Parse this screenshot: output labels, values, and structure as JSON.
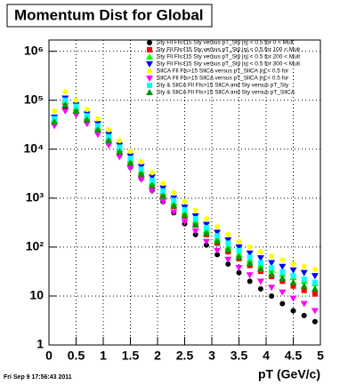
{
  "chart_data": {
    "type": "scatter",
    "title": "Momentum Dist for Global",
    "x_label": "pT (GeV/c)",
    "footer": "Fri Sep  9 17:56:43 2011",
    "log_y": true,
    "grid": true,
    "xlim": [
      0,
      5
    ],
    "xticks": [
      0,
      0.5,
      1,
      1.5,
      2,
      2.5,
      3,
      3.5,
      4,
      4.5,
      5
    ],
    "ylim": [
      1,
      1700000
    ],
    "yticks": [
      1,
      10,
      {
        "value": 100,
        "label": "10²"
      },
      {
        "value": 1000,
        "label": "10³"
      },
      {
        "value": 10000,
        "label": "10⁴"
      },
      {
        "value": 100000,
        "label": "10⁵"
      },
      {
        "value": 1000000,
        "label": "10⁶"
      }
    ],
    "x": [
      0.1,
      0.3,
      0.5,
      0.7,
      0.9,
      1.1,
      1.3,
      1.5,
      1.7,
      1.9,
      2.1,
      2.3,
      2.5,
      2.7,
      2.9,
      3.1,
      3.3,
      3.5,
      3.7,
      3.9,
      4.1,
      4.3,
      4.5,
      4.7,
      4.9
    ],
    "series": [
      {
        "name": "Sty Fll Fls>15 Sty versus pT_Sty |η| < 0.5 for 0 < Mult",
        "color": "#000000",
        "marker": "circle",
        "values": [
          35000,
          70000,
          55000,
          36000,
          22000,
          13000,
          7500,
          4300,
          2500,
          1450,
          850,
          500,
          300,
          180,
          110,
          70,
          45,
          30,
          20,
          14,
          10,
          7,
          5,
          4,
          3
        ]
      },
      {
        "name": "Sty Fll Fls>15 Sty versus pT_Sty |η| < 0.5 for 100 < Mult",
        "color": "#ff0000",
        "marker": "square",
        "values": [
          38000,
          90000,
          65000,
          42000,
          26000,
          15000,
          9000,
          5300,
          3100,
          1800,
          1100,
          680,
          430,
          280,
          180,
          120,
          80,
          58,
          42,
          32,
          25,
          20,
          16,
          13,
          11
        ]
      },
      {
        "name": "Sty Fll Fls>15 Sty versus pT_Sty |η| < 0.5 for 200 < Mult",
        "color": "#00ff00",
        "marker": "up",
        "values": [
          40000,
          95000,
          70000,
          45000,
          28000,
          17000,
          10000,
          6000,
          3600,
          2100,
          1300,
          800,
          520,
          340,
          220,
          150,
          100,
          72,
          55,
          42,
          34,
          28,
          24,
          20,
          18
        ]
      },
      {
        "name": "Sty Fll Fls>15 Sty versus pT_Sty |η| < 0.5 for 300 < Mult",
        "color": "#0000ff",
        "marker": "down",
        "values": [
          45000,
          110000,
          80000,
          52000,
          33000,
          20000,
          12000,
          7200,
          4400,
          2700,
          1600,
          1000,
          650,
          430,
          290,
          200,
          140,
          100,
          75,
          60,
          48,
          40,
          34,
          30,
          26
        ]
      },
      {
        "name": "SllCA Fll Fls>15 SllCA versus pT_SllCA |η| < 0.5 for",
        "color": "#ffff00",
        "marker": "circle",
        "values": [
          60000,
          150000,
          100000,
          65000,
          42000,
          25000,
          15000,
          9000,
          5500,
          3300,
          2000,
          1300,
          850,
          560,
          380,
          260,
          180,
          130,
          100,
          80,
          65,
          55,
          45,
          40,
          35
        ]
      },
      {
        "name": "SllCA Fll Fls>15 SllCA versus pT_SllCA |η| < 0.5 for",
        "color": "#ff00ff",
        "marker": "down",
        "values": [
          30000,
          60000,
          50000,
          33000,
          20000,
          12000,
          7000,
          4100,
          2400,
          1400,
          850,
          520,
          330,
          210,
          130,
          85,
          56,
          38,
          27,
          20,
          15,
          12,
          9,
          7,
          5
        ]
      },
      {
        "name": "Sty & SllCA Fll Fls>15 SllCA and Sty versus pT_Sty",
        "color": "#00ffff",
        "marker": "square",
        "values": [
          42000,
          100000,
          75000,
          48000,
          30000,
          18000,
          11000,
          6500,
          3900,
          2300,
          1400,
          900,
          580,
          380,
          250,
          170,
          120,
          85,
          62,
          48,
          38,
          31,
          26,
          22,
          19
        ]
      },
      {
        "name": "Sty & SllCA Fll Fls>15 SllCA and Sty versus pT_SllCA",
        "color": "#009900",
        "marker": "up",
        "values": [
          36000,
          80000,
          60000,
          40000,
          25000,
          15000,
          8800,
          5200,
          3100,
          1800,
          1100,
          700,
          450,
          290,
          190,
          130,
          88,
          62,
          46,
          35,
          28,
          23,
          19,
          16,
          14
        ]
      }
    ]
  }
}
